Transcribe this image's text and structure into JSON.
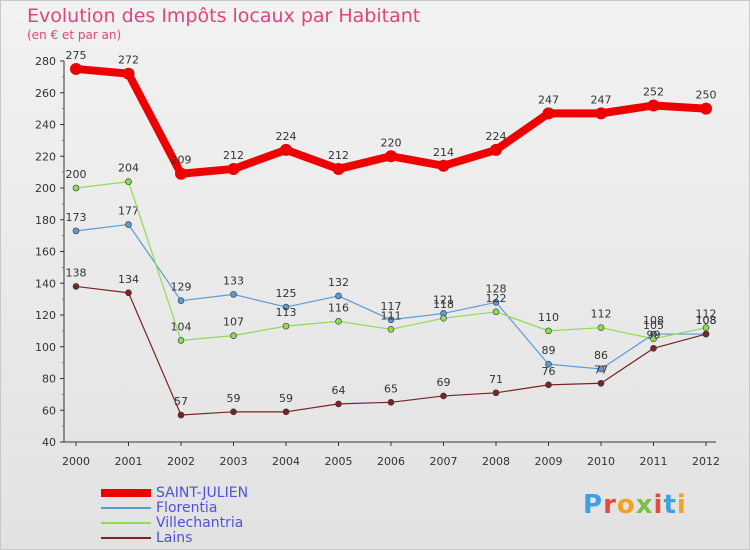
{
  "header": {
    "title": "Evolution des Impôts locaux par Habitant",
    "subtitle": "(en € et par an)"
  },
  "logo": {
    "text": "Proxiti",
    "colors": [
      "#3ea0e0",
      "#e84a3a",
      "#f2a020",
      "#7ac043",
      "#e84a3a",
      "#3ea0e0",
      "#f2a020"
    ]
  },
  "chart_data": {
    "type": "line",
    "x": [
      "2000",
      "2001",
      "2002",
      "2003",
      "2004",
      "2005",
      "2006",
      "2007",
      "2008",
      "2009",
      "2010",
      "2011",
      "2012"
    ],
    "ylim": [
      40,
      280
    ],
    "yticks": [
      "40",
      "60",
      "80",
      "100",
      "120",
      "140",
      "160",
      "180",
      "200",
      "220",
      "240",
      "260",
      "280"
    ],
    "grid": false,
    "legend_position": "bottom-left",
    "series": [
      {
        "name": "SAINT-JULIEN",
        "color": "#ee0000",
        "width": 8,
        "values": [
          275,
          272,
          209,
          212,
          224,
          212,
          220,
          214,
          224,
          247,
          247,
          252,
          250
        ],
        "labels": [
          "275",
          "272",
          "209",
          "212",
          "224",
          "212",
          "220",
          "214",
          "224",
          "247",
          "247",
          "252",
          "250"
        ]
      },
      {
        "name": "Florentia",
        "color": "#5b9bd5",
        "width": 1.2,
        "values": [
          173,
          177,
          129,
          133,
          125,
          132,
          117,
          121,
          128,
          89,
          86,
          108,
          108
        ],
        "labels": [
          "173",
          "177",
          "129",
          "133",
          "125",
          "132",
          "117",
          "121",
          "128",
          "89",
          "86",
          "108",
          "108"
        ]
      },
      {
        "name": "Villechantria",
        "color": "#8fdc50",
        "width": 1.2,
        "values": [
          200,
          204,
          104,
          107,
          113,
          116,
          111,
          118,
          122,
          110,
          112,
          105,
          112
        ],
        "labels": [
          "200",
          "204",
          "104",
          "107",
          "113",
          "116",
          "111",
          "118",
          "122",
          "110",
          "112",
          "105",
          "112"
        ]
      },
      {
        "name": "Lains",
        "color": "#7a2424",
        "width": 1.2,
        "values": [
          138,
          134,
          57,
          59,
          59,
          64,
          65,
          69,
          71,
          76,
          77,
          99,
          108
        ],
        "labels": [
          "138",
          "134",
          "57",
          "59",
          "59",
          "64",
          "65",
          "69",
          "71",
          "76",
          "77",
          "99",
          "108"
        ]
      }
    ]
  }
}
